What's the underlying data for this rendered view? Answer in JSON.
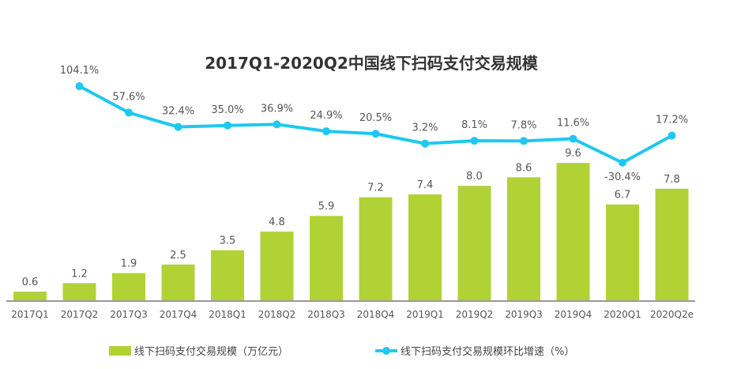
{
  "chart_data": {
    "type": "bar+line",
    "title": "2017Q1-2020Q2中国线下扫码支付交易规模",
    "categories": [
      "2017Q1",
      "2017Q2",
      "2017Q3",
      "2017Q4",
      "2018Q1",
      "2018Q2",
      "2018Q3",
      "2018Q4",
      "2019Q1",
      "2019Q2",
      "2019Q3",
      "2019Q4",
      "2020Q1",
      "2020Q2e"
    ],
    "series": [
      {
        "name": "线下扫码支付交易规模（万亿元）",
        "type": "bar",
        "color": "#b1d234",
        "values": [
          0.6,
          1.2,
          1.9,
          2.5,
          3.5,
          4.8,
          5.9,
          7.2,
          7.4,
          8.0,
          8.6,
          9.6,
          6.7,
          7.8
        ],
        "labels": [
          "0.6",
          "1.2",
          "1.9",
          "2.5",
          "3.5",
          "4.8",
          "5.9",
          "7.2",
          "7.4",
          "8.0",
          "8.6",
          "9.6",
          "6.7",
          "7.8"
        ]
      },
      {
        "name": "线下扫码支付交易规模环比增速（%）",
        "type": "line",
        "color": "#1ec8f0",
        "values": [
          null,
          104.1,
          57.6,
          32.4,
          35.0,
          36.9,
          24.9,
          20.5,
          3.2,
          8.1,
          7.8,
          11.6,
          -30.4,
          17.2
        ],
        "labels": [
          null,
          "104.1%",
          "57.6%",
          "32.4%",
          "35.0%",
          "36.9%",
          "24.9%",
          "20.5%",
          "3.2%",
          "8.1%",
          "7.8%",
          "11.6%",
          "-30.4%",
          "17.2%"
        ]
      }
    ],
    "legend": "bottom",
    "grid": false
  }
}
